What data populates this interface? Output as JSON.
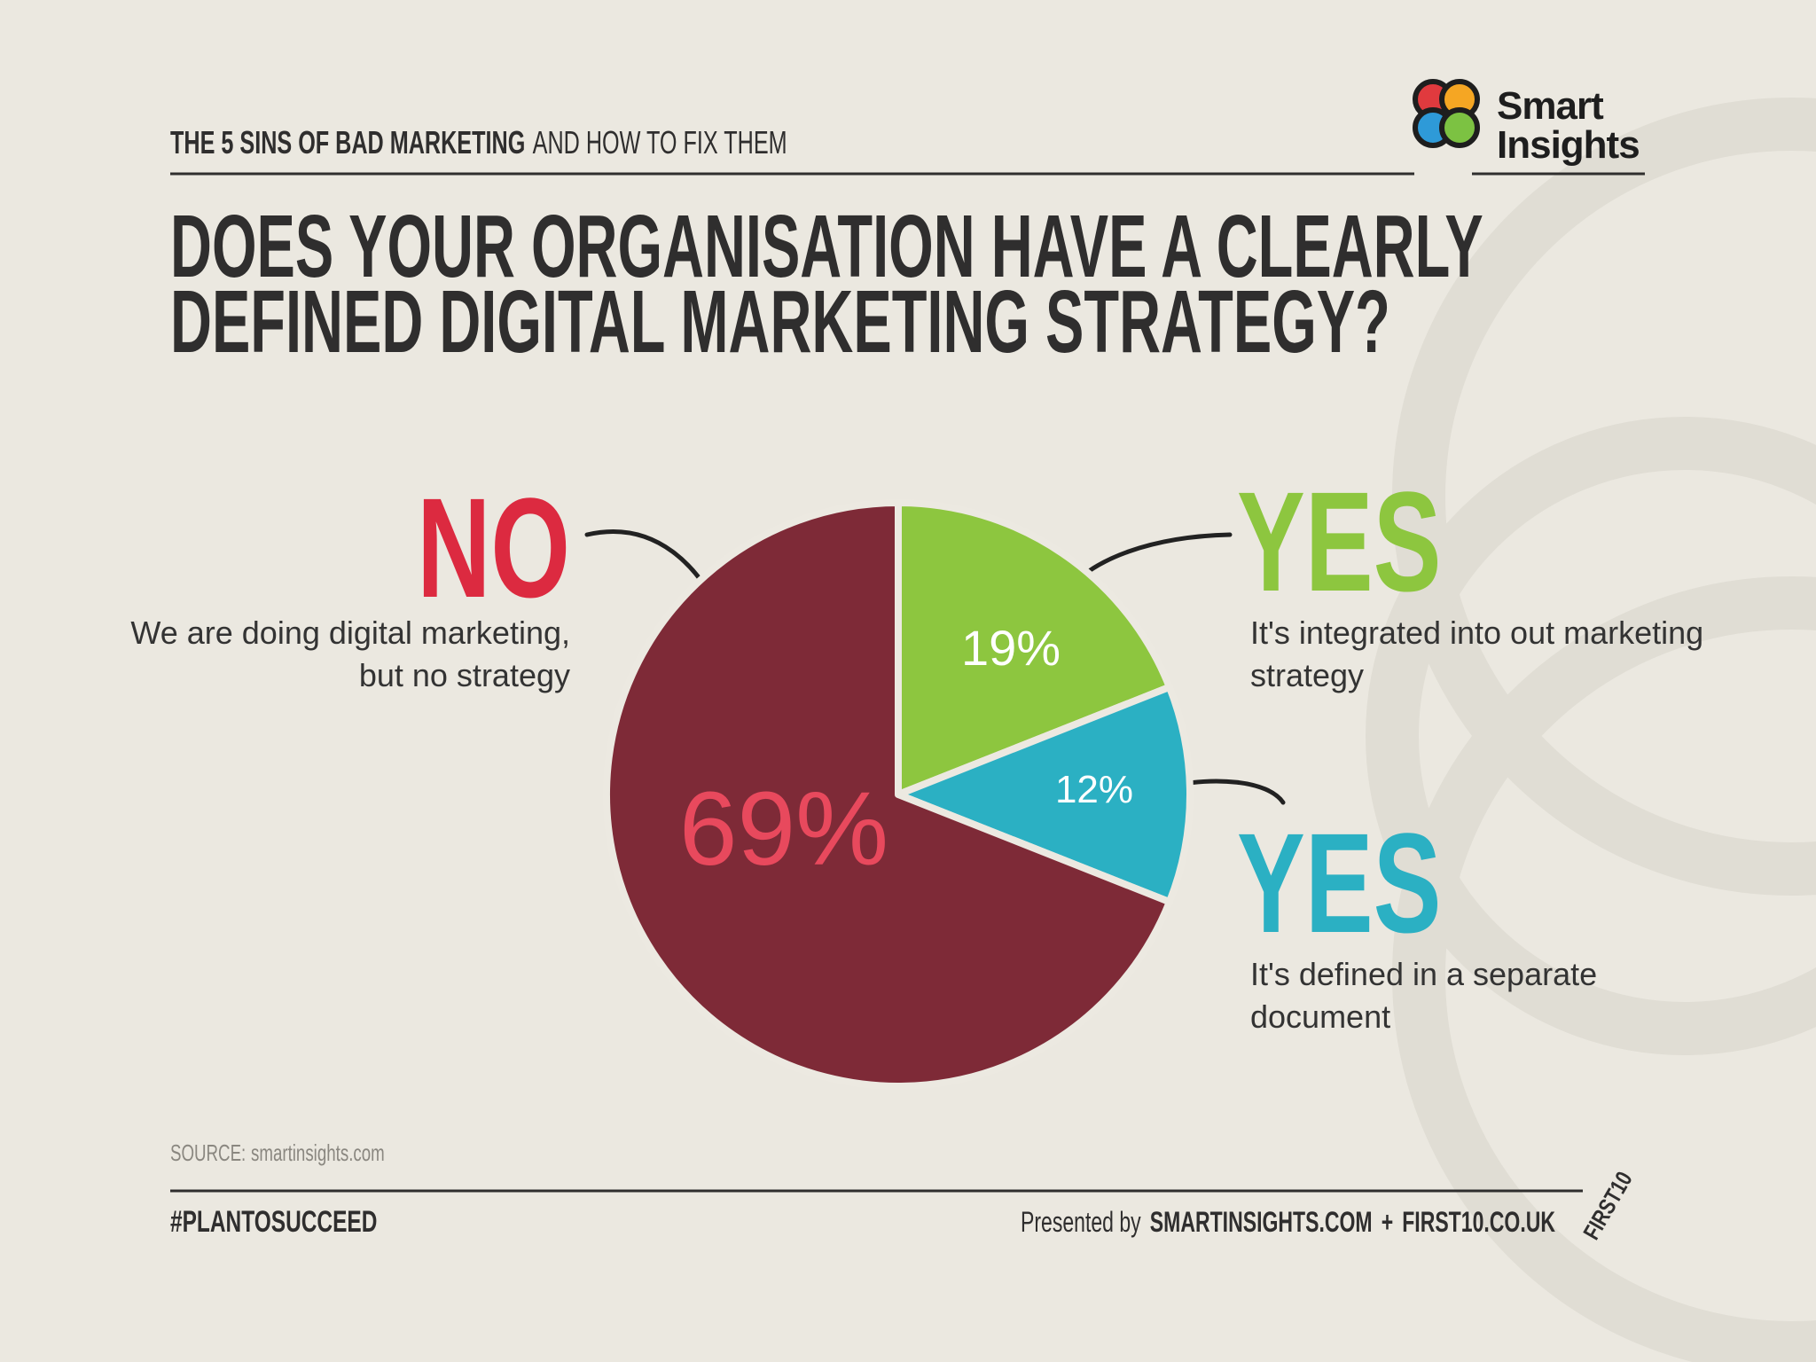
{
  "header": {
    "series": "THE 5 SINS OF BAD MARKETING",
    "series_sub": "AND HOW TO FIX THEM",
    "logo": [
      "Smart",
      "Insights"
    ]
  },
  "chart_data": {
    "type": "pie",
    "title": "DOES YOUR ORGANISATION HAVE A CLEARLY DEFINED DIGITAL MARKETING STRATEGY?",
    "categories": [
      "YES",
      "YES",
      "NO"
    ],
    "values": [
      19,
      12,
      69
    ],
    "value_labels": [
      "19%",
      "12%",
      "69%"
    ],
    "descriptions": [
      "It's integrated into out marketing strategy",
      "It's defined in a separate document",
      "We are doing digital marketing, but no strategy"
    ],
    "colors": [
      "#8dc63f",
      "#2bb0c3",
      "#7e2a37"
    ],
    "label_colors": [
      "#8dc63f",
      "#2bb0c3",
      "#dc2a40"
    ],
    "value_label_colors": [
      "#ffffff",
      "#ffffff",
      "#e8495d"
    ]
  },
  "footer": {
    "source_label": "SOURCE:",
    "source": "smartinsights.com",
    "hashtag": "#PLANTOSUCCEED",
    "presented_by": "Presented by",
    "sites": [
      "SMARTINSIGHTS.COM",
      "+",
      "FIRST10.CO.UK"
    ],
    "badge": "FIRST10"
  }
}
